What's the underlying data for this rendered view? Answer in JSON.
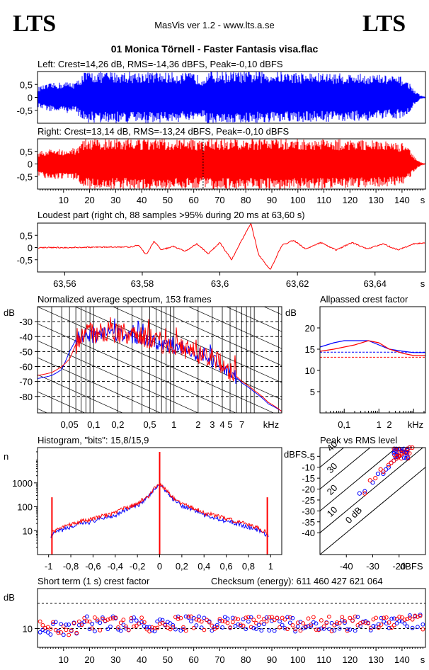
{
  "header": {
    "logo_left": "LTS",
    "logo_right": "LTS",
    "app_name": "MasVis ver 1.2 - www.lts.a.se",
    "file_title": "01 Monica Törnell - Faster Fantasis visa.flac"
  },
  "colors": {
    "left": "#0000ff",
    "right": "#ff0000",
    "axis": "#000000"
  },
  "chart_data": [
    {
      "id": "left-waveform",
      "type": "line",
      "title": "Left: Crest=14,26 dB, RMS=-14,36 dBFS, Peak=-0,10 dBFS",
      "y_ticks": [
        "0,5",
        "0",
        "-0,5"
      ],
      "ylim": [
        -1,
        1
      ],
      "xlim": [
        0,
        149
      ],
      "envelope": {
        "x": [
          0,
          5,
          10,
          15,
          17,
          18,
          25,
          40,
          60,
          63,
          65,
          90,
          110,
          130,
          140,
          143,
          145,
          147,
          149
        ],
        "amp": [
          0.4,
          0.55,
          0.6,
          0.62,
          0.9,
          1.0,
          1.0,
          1.0,
          0.95,
          0.8,
          1.0,
          1.0,
          0.95,
          0.9,
          0.8,
          0.55,
          0.25,
          0.08,
          0.02
        ]
      }
    },
    {
      "id": "right-waveform",
      "type": "line",
      "title": "Right: Crest=13,14 dB, RMS=-13,24 dBFS, Peak=-0,10 dBFS",
      "y_ticks": [
        "0,5",
        "0",
        "-0,5"
      ],
      "ylim": [
        -1,
        1
      ],
      "xlim": [
        0,
        149
      ],
      "x_ticks": [
        "10",
        "20",
        "30",
        "40",
        "50",
        "60",
        "70",
        "80",
        "90",
        "100",
        "110",
        "120",
        "130",
        "140",
        "s"
      ],
      "x_tick_values": [
        10,
        20,
        30,
        40,
        50,
        60,
        70,
        80,
        90,
        100,
        110,
        120,
        130,
        140
      ],
      "envelope": {
        "x": [
          0,
          5,
          10,
          15,
          17,
          18,
          25,
          40,
          60,
          63,
          65,
          90,
          110,
          130,
          140,
          143,
          145,
          147,
          149
        ],
        "amp": [
          0.5,
          0.6,
          0.62,
          0.65,
          0.95,
          1.0,
          1.0,
          1.0,
          0.98,
          0.9,
          1.0,
          1.0,
          1.0,
          0.95,
          0.85,
          0.55,
          0.25,
          0.08,
          0.02
        ]
      }
    },
    {
      "id": "loudest-part",
      "type": "line",
      "title": "Loudest part (right ch, 88 samples >95% during 20 ms at 63,60 s)",
      "y_ticks": [
        "0,5",
        "0",
        "-0,5"
      ],
      "ylim": [
        -1,
        1
      ],
      "xlim": [
        63.553,
        63.653
      ],
      "x_ticks": [
        "63,56",
        "63,58",
        "63,6",
        "63,62",
        "63,64",
        "s"
      ],
      "x_tick_values": [
        63.56,
        63.58,
        63.6,
        63.62,
        63.64
      ],
      "x": [
        63.553,
        63.56,
        63.57,
        63.577,
        63.579,
        63.581,
        63.583,
        63.585,
        63.588,
        63.591,
        63.594,
        63.597,
        63.6,
        63.603,
        63.606,
        63.608,
        63.61,
        63.613,
        63.616,
        63.619,
        63.622,
        63.626,
        63.63,
        63.634,
        63.638,
        63.642,
        63.646,
        63.65,
        63.653
      ],
      "y": [
        0.0,
        0.0,
        0.02,
        0.02,
        0.1,
        -0.3,
        0.25,
        -0.1,
        0.05,
        -0.15,
        0.15,
        -0.25,
        0.2,
        -0.5,
        0.4,
        1.0,
        -0.3,
        -0.9,
        0.1,
        0.3,
        -0.05,
        0.2,
        -0.1,
        0.2,
        -0.05,
        0.15,
        -0.1,
        0.15,
        0.2
      ]
    },
    {
      "id": "spectrum",
      "type": "line",
      "title": "Normalized average spectrum, 153 frames",
      "ylabel": "dB",
      "y_ticks": [
        "-30",
        "-40",
        "-50",
        "-60",
        "-70",
        "-80"
      ],
      "y_tick_values": [
        -30,
        -40,
        -50,
        -60,
        -70,
        -80
      ],
      "ylim": [
        -91,
        -20
      ],
      "xlim": [
        0.02,
        22
      ],
      "x_scale": "log",
      "x_ticks": [
        "0,05",
        "0,1",
        "0,2",
        "0,5",
        "1",
        "2",
        "3",
        "4",
        "5",
        "7",
        "kHz"
      ],
      "x_tick_values": [
        0.05,
        0.1,
        0.2,
        0.5,
        1,
        2,
        3,
        4,
        5,
        7
      ],
      "series": [
        {
          "color": "#0000ff",
          "x": [
            0.02,
            0.03,
            0.04,
            0.05,
            0.06,
            0.08,
            0.1,
            0.15,
            0.2,
            0.3,
            0.5,
            0.7,
            1,
            1.5,
            2,
            3,
            5,
            7,
            10,
            15,
            22
          ],
          "y": [
            -68,
            -66,
            -62,
            -50,
            -42,
            -38,
            -40,
            -38,
            -39,
            -40,
            -43,
            -45,
            -47,
            -50,
            -52,
            -56,
            -64,
            -71,
            -77,
            -85,
            -90
          ]
        },
        {
          "color": "#ff0000",
          "x": [
            0.02,
            0.03,
            0.04,
            0.05,
            0.06,
            0.08,
            0.1,
            0.15,
            0.2,
            0.3,
            0.5,
            0.7,
            1,
            1.5,
            2,
            3,
            5,
            7,
            10,
            15,
            22
          ],
          "y": [
            -66,
            -64,
            -60,
            -55,
            -45,
            -37,
            -38,
            -36,
            -38,
            -38,
            -41,
            -44,
            -46,
            -49,
            -52,
            -55,
            -63,
            -70,
            -76,
            -84,
            -90
          ]
        }
      ]
    },
    {
      "id": "allpassed-crest",
      "type": "line",
      "title": "Allpassed crest factor",
      "ylabel": "dB",
      "y_ticks": [
        "20",
        "15",
        "10",
        "5"
      ],
      "y_tick_values": [
        20,
        15,
        10,
        5
      ],
      "ylim": [
        0,
        25
      ],
      "xlim": [
        0.02,
        22
      ],
      "x_scale": "log",
      "x_ticks": [
        "0,1",
        "1",
        "2",
        "kHz"
      ],
      "x_tick_values": [
        0.1,
        1,
        2
      ],
      "series": [
        {
          "color": "#0000ff",
          "x": [
            0.02,
            0.05,
            0.1,
            0.2,
            0.5,
            1,
            2,
            5,
            10,
            22
          ],
          "y": [
            15.5,
            16.5,
            17,
            17,
            17,
            16,
            15,
            14.5,
            14.2,
            14.2
          ]
        },
        {
          "color": "#ff0000",
          "x": [
            0.02,
            0.05,
            0.1,
            0.2,
            0.5,
            1,
            2,
            5,
            10,
            22
          ],
          "y": [
            14.5,
            15,
            15.5,
            16,
            17,
            16.5,
            15,
            14,
            13.5,
            13.5
          ]
        }
      ],
      "reference_lines": [
        {
          "color": "#0000ff",
          "y": 14.3
        },
        {
          "color": "#ff0000",
          "y": 13.1
        }
      ]
    },
    {
      "id": "histogram",
      "type": "line",
      "title": "Histogram, \"bits\": 15,8/15,9",
      "ylabel": "n",
      "y_scale": "log",
      "y_ticks": [
        "1000",
        "100",
        "10"
      ],
      "y_tick_values": [
        1000,
        100,
        10
      ],
      "ylim": [
        1,
        30000
      ],
      "xlim": [
        -1.1,
        1.1
      ],
      "x_ticks": [
        "-1",
        "-0,8",
        "-0,6",
        "-0,4",
        "-0,2",
        "0",
        "0,2",
        "0,4",
        "0,6",
        "0,8",
        "1"
      ],
      "x_tick_values": [
        -1,
        -0.8,
        -0.6,
        -0.4,
        -0.2,
        0,
        0.2,
        0.4,
        0.6,
        0.8,
        1
      ],
      "series": [
        {
          "color": "#0000ff",
          "x": [
            -0.98,
            -0.9,
            -0.8,
            -0.6,
            -0.4,
            -0.2,
            -0.1,
            0,
            0.1,
            0.2,
            0.4,
            0.6,
            0.8,
            0.9,
            0.98
          ],
          "y": [
            6,
            10,
            14,
            25,
            45,
            110,
            250,
            800,
            250,
            110,
            45,
            25,
            14,
            10,
            6
          ]
        },
        {
          "color": "#ff0000",
          "x": [
            -0.98,
            -0.9,
            -0.8,
            -0.6,
            -0.4,
            -0.2,
            -0.1,
            0,
            0.1,
            0.2,
            0.4,
            0.6,
            0.8,
            0.9,
            0.98
          ],
          "y": [
            8,
            12,
            18,
            32,
            55,
            130,
            280,
            850,
            280,
            130,
            55,
            32,
            18,
            12,
            8
          ]
        }
      ],
      "spikes": [
        {
          "x": -0.97,
          "y": 250,
          "color": "#ff0000"
        },
        {
          "x": 0,
          "y": 20000,
          "color": "#ff0000"
        },
        {
          "x": 0.97,
          "y": 250,
          "color": "#ff0000"
        }
      ]
    },
    {
      "id": "peak-vs-rms",
      "type": "scatter",
      "title": "Peak vs RMS level",
      "ylabel": "dBFS",
      "xlabel": "dBFS",
      "x_ticks": [
        "-40",
        "-30",
        "-20"
      ],
      "x_tick_values": [
        -40,
        -30,
        -20
      ],
      "y_ticks": [
        "-5",
        "-10",
        "-15",
        "-20",
        "-25",
        "-30",
        "-35",
        "-40"
      ],
      "y_tick_values": [
        -5,
        -10,
        -15,
        -20,
        -25,
        -30,
        -35,
        -40
      ],
      "xlim": [
        -50,
        -10
      ],
      "ylim": [
        -50,
        -1
      ],
      "diagonal_labels": [
        "40",
        "30",
        "20",
        "10",
        "0 dB"
      ],
      "diagonal_offsets": [
        40,
        30,
        20,
        10,
        0
      ],
      "series": [
        {
          "color": "#0000ff",
          "x": [
            -35,
            -33,
            -30,
            -28,
            -26,
            -25,
            -24,
            -23,
            -22,
            -21,
            -20,
            -19,
            -18,
            -17,
            -16
          ],
          "y": [
            -22,
            -21,
            -17,
            -13,
            -13,
            -11,
            -10,
            -8,
            -7,
            -6,
            -5,
            -4,
            -3,
            -2,
            -1
          ]
        },
        {
          "color": "#ff0000",
          "x": [
            -33,
            -31,
            -29,
            -27,
            -26,
            -24,
            -23,
            -22,
            -21,
            -20,
            -19,
            -18,
            -17,
            -16,
            -15
          ],
          "y": [
            -22,
            -16,
            -15,
            -11,
            -12,
            -9,
            -8,
            -7,
            -6,
            -5,
            -4,
            -3,
            -2,
            -1,
            -1
          ]
        }
      ]
    },
    {
      "id": "short-term-crest",
      "type": "scatter",
      "title": "Short term (1 s) crest factor",
      "checksum": "Checksum (energy):   611 460 427 621 064",
      "ylabel": "dB",
      "y_ticks": [
        "10"
      ],
      "y_tick_values": [
        10
      ],
      "y_scale": "log",
      "ylim": [
        6.5,
        25
      ],
      "xlim": [
        0,
        149
      ],
      "x_ticks": [
        "10",
        "20",
        "30",
        "40",
        "50",
        "60",
        "70",
        "80",
        "90",
        "100",
        "110",
        "120",
        "130",
        "140",
        "s"
      ],
      "x_tick_values": [
        10,
        20,
        30,
        40,
        50,
        60,
        70,
        80,
        90,
        100,
        110,
        120,
        130,
        140
      ],
      "dashed_levels": [
        10,
        17.8
      ]
    }
  ]
}
